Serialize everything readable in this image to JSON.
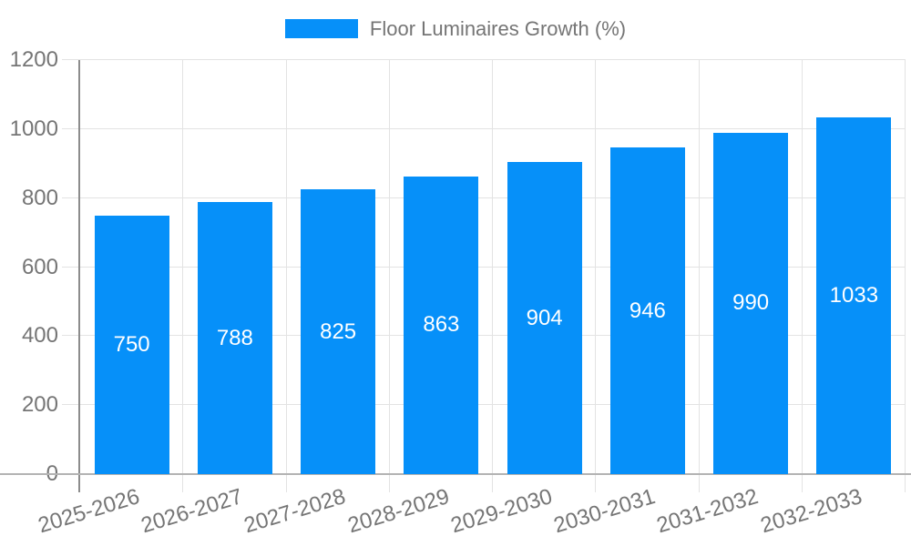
{
  "chart_data": {
    "type": "bar",
    "title": "Floor Luminaires Growth (%)",
    "legend": {
      "label": "Floor Luminaires Growth (%)",
      "position": "top-center"
    },
    "categories": [
      "2025-2026",
      "2026-2027",
      "2027-2028",
      "2028-2029",
      "2029-2030",
      "2030-2031",
      "2031-2032",
      "2032-2033"
    ],
    "values": [
      750,
      788,
      825,
      863,
      904,
      946,
      990,
      1033
    ],
    "xlabel": "",
    "ylabel": "",
    "ylim": [
      0,
      1200
    ],
    "ytick_step": 200,
    "ytick_labels": [
      "0",
      "200",
      "400",
      "600",
      "800",
      "1000",
      "1200"
    ],
    "grid": true,
    "bar_value_labels": true,
    "x_label_rotation_deg": -17,
    "colors": {
      "bar": "#0690F9",
      "value_label": "#FFFFFF",
      "axis_text": "#757575",
      "grid": "#E3E3E3",
      "y_axis_line": "#8C8C8C",
      "x_axis_line": "#B3B3B3",
      "background": "#FFFFFF"
    }
  }
}
